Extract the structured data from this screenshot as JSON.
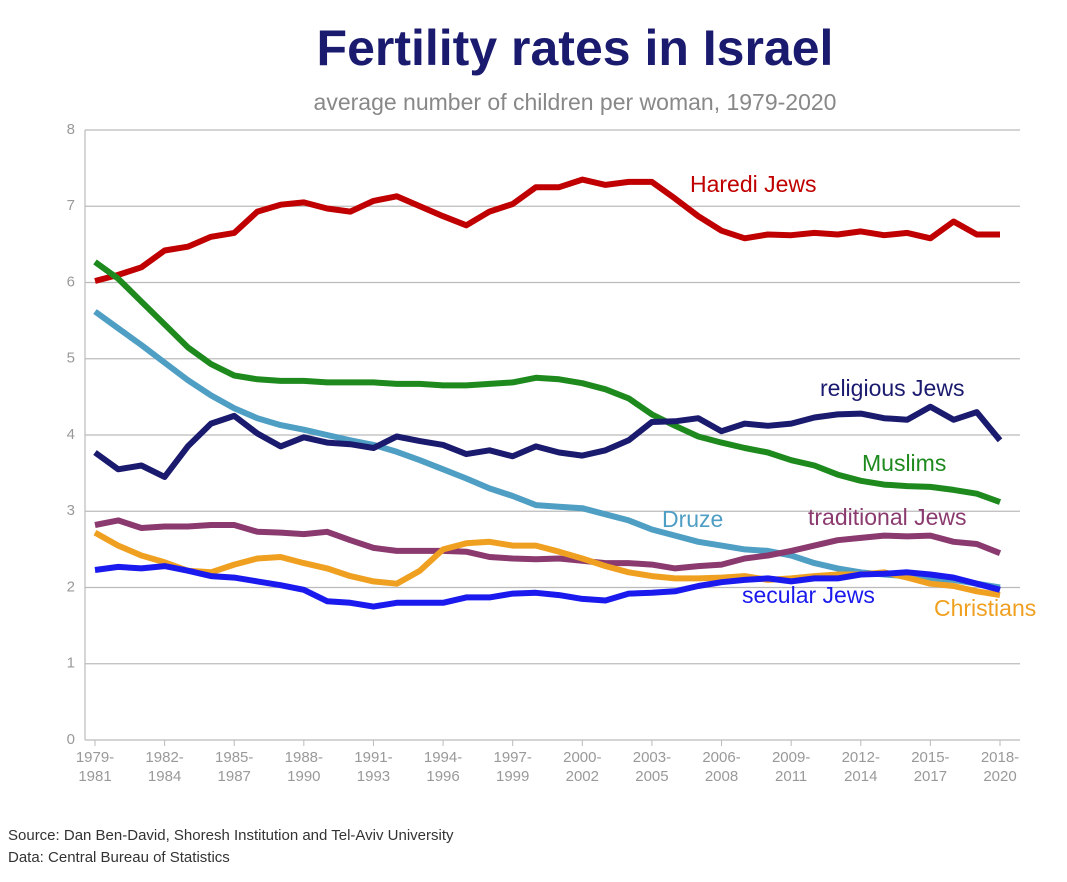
{
  "chart_data": {
    "type": "line",
    "title": "Fertility rates in Israel",
    "subtitle": "average number of children per woman, 1979-2020",
    "source": "Source: Dan Ben-David, Shoresh Institution and Tel-Aviv University",
    "data_note": "Data: Central Bureau of Statistics",
    "categories": [
      "1979-1981",
      null,
      null,
      "1982-1984",
      null,
      null,
      "1985-1987",
      null,
      null,
      "1988-1990",
      null,
      null,
      "1991-1993",
      null,
      null,
      "1994-1996",
      null,
      null,
      "1997-1999",
      null,
      null,
      "2000-2002",
      null,
      null,
      "2003-2005",
      null,
      null,
      "2006-2008",
      null,
      null,
      "2009-2011",
      null,
      null,
      "2012-2014",
      null,
      null,
      "2015-2017",
      null,
      null,
      "2018-2020"
    ],
    "ylim": [
      0,
      8
    ],
    "yticks": [
      0,
      1,
      2,
      3,
      4,
      5,
      6,
      7,
      8
    ],
    "grid": true,
    "series": [
      {
        "name": "Haredi Jews",
        "color": "#c00000",
        "values": [
          6.02,
          6.1,
          6.2,
          6.42,
          6.47,
          6.6,
          6.65,
          6.93,
          7.02,
          7.05,
          6.97,
          6.93,
          7.07,
          7.13,
          7.0,
          6.87,
          6.75,
          6.93,
          7.03,
          7.25,
          7.25,
          7.35,
          7.28,
          7.32,
          7.32,
          7.1,
          6.87,
          6.68,
          6.58,
          6.63,
          6.62,
          6.65,
          6.63,
          6.67,
          6.62,
          6.65,
          6.58,
          6.8,
          6.63,
          6.63
        ]
      },
      {
        "name": "Muslims",
        "color": "#1e8a1e",
        "values": [
          6.27,
          6.05,
          5.75,
          5.45,
          5.15,
          4.93,
          4.78,
          4.73,
          4.71,
          4.71,
          4.69,
          4.69,
          4.69,
          4.67,
          4.67,
          4.65,
          4.65,
          4.67,
          4.69,
          4.75,
          4.73,
          4.68,
          4.6,
          4.48,
          4.27,
          4.12,
          3.98,
          3.9,
          3.83,
          3.77,
          3.67,
          3.6,
          3.48,
          3.4,
          3.35,
          3.33,
          3.32,
          3.28,
          3.23,
          3.12
        ]
      },
      {
        "name": "Druze",
        "color": "#4f9ec4",
        "values": [
          5.62,
          5.4,
          5.18,
          4.95,
          4.72,
          4.52,
          4.35,
          4.22,
          4.13,
          4.07,
          4.0,
          3.93,
          3.87,
          3.78,
          3.67,
          3.55,
          3.43,
          3.3,
          3.2,
          3.08,
          3.06,
          3.04,
          2.96,
          2.88,
          2.76,
          2.68,
          2.6,
          2.55,
          2.5,
          2.48,
          2.42,
          2.32,
          2.25,
          2.2,
          2.17,
          2.15,
          2.12,
          2.1,
          2.05,
          2.0
        ]
      },
      {
        "name": "religious Jews",
        "color": "#1a1a6e",
        "values": [
          3.77,
          3.55,
          3.6,
          3.45,
          3.85,
          4.15,
          4.25,
          4.02,
          3.85,
          3.97,
          3.9,
          3.88,
          3.83,
          3.98,
          3.92,
          3.87,
          3.75,
          3.8,
          3.72,
          3.85,
          3.77,
          3.73,
          3.8,
          3.93,
          4.17,
          4.18,
          4.22,
          4.05,
          4.15,
          4.12,
          4.15,
          4.23,
          4.27,
          4.28,
          4.22,
          4.2,
          4.37,
          4.2,
          4.3,
          3.93
        ]
      },
      {
        "name": "traditional Jews",
        "color": "#8a3a6e",
        "values": [
          2.82,
          2.88,
          2.78,
          2.8,
          2.8,
          2.82,
          2.82,
          2.73,
          2.72,
          2.7,
          2.73,
          2.62,
          2.52,
          2.48,
          2.48,
          2.48,
          2.47,
          2.4,
          2.38,
          2.37,
          2.38,
          2.35,
          2.32,
          2.32,
          2.3,
          2.25,
          2.28,
          2.3,
          2.38,
          2.42,
          2.48,
          2.55,
          2.62,
          2.65,
          2.68,
          2.67,
          2.68,
          2.6,
          2.57,
          2.45
        ]
      },
      {
        "name": "Christians",
        "color": "#f0a020",
        "values": [
          2.72,
          2.55,
          2.42,
          2.33,
          2.22,
          2.2,
          2.3,
          2.38,
          2.4,
          2.32,
          2.25,
          2.15,
          2.08,
          2.05,
          2.22,
          2.5,
          2.58,
          2.6,
          2.55,
          2.55,
          2.47,
          2.38,
          2.28,
          2.2,
          2.15,
          2.12,
          2.12,
          2.13,
          2.15,
          2.1,
          2.12,
          2.15,
          2.17,
          2.17,
          2.2,
          2.13,
          2.05,
          2.02,
          1.95,
          1.9
        ]
      },
      {
        "name": "secular Jews",
        "color": "#1a1aee",
        "values": [
          2.23,
          2.27,
          2.25,
          2.28,
          2.22,
          2.15,
          2.13,
          2.08,
          2.03,
          1.97,
          1.82,
          1.8,
          1.75,
          1.8,
          1.8,
          1.8,
          1.87,
          1.87,
          1.92,
          1.93,
          1.9,
          1.85,
          1.83,
          1.92,
          1.93,
          1.95,
          2.02,
          2.07,
          2.1,
          2.12,
          2.08,
          2.12,
          2.12,
          2.17,
          2.18,
          2.2,
          2.17,
          2.13,
          2.05,
          1.97
        ]
      }
    ]
  }
}
